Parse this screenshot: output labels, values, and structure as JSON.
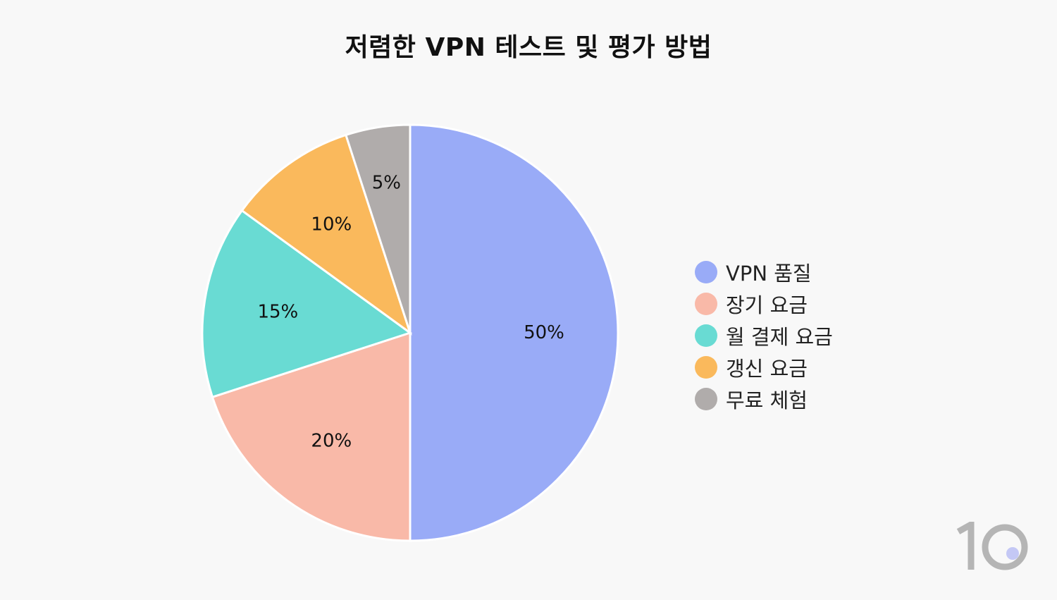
{
  "chart_data": {
    "type": "pie",
    "title": "저렴한 VPN 테스트 및 평가 방법",
    "slices": [
      {
        "label": "VPN 품질",
        "value": 50,
        "display": "50%",
        "color": "#99abf7"
      },
      {
        "label": "장기 요금",
        "value": 20,
        "display": "20%",
        "color": "#f9b9a8"
      },
      {
        "label": "월 결제 요금",
        "value": 15,
        "display": "15%",
        "color": "#69dbd3"
      },
      {
        "label": "갱신 요금",
        "value": 10,
        "display": "10%",
        "color": "#fab95c"
      },
      {
        "label": "무료 체험",
        "value": 5,
        "display": "5%",
        "color": "#b0acab"
      }
    ],
    "start_angle": "12 o'clock",
    "direction": "clockwise",
    "legend_position": "right"
  },
  "logo": {
    "text": "10",
    "color": "#b5b5b5",
    "dot_color": "#c4c8f5"
  }
}
